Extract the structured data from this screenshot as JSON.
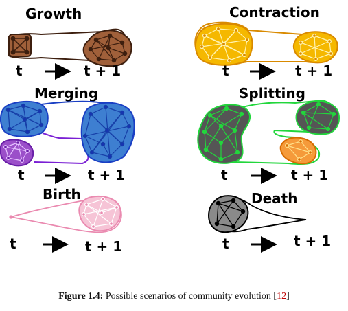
{
  "scenarios": {
    "growth": {
      "title": "Growth",
      "t": "t",
      "t1": "t + 1"
    },
    "contraction": {
      "title": "Contraction",
      "t": "t",
      "t1": "t + 1"
    },
    "merging": {
      "title": "Merging",
      "t": "t",
      "t1": "t + 1"
    },
    "splitting": {
      "title": "Splitting",
      "t": "t",
      "t1": "t + 1"
    },
    "birth": {
      "title": "Birth",
      "t": "t",
      "t1": "t + 1"
    },
    "death": {
      "title": "Death",
      "t": "t",
      "t1": "t + 1"
    }
  },
  "colors": {
    "growth_fill": "#a0603a",
    "growth_stroke": "#3d1f0f",
    "contraction_fill": "#f5b800",
    "contraction_stroke": "#d98a00",
    "merging_fill": "#3e7fd1",
    "merging_stroke": "#1a3fc4",
    "merging_purple": "#9b4fc9",
    "splitting_fill": "#555555",
    "splitting_stroke": "#22d63c",
    "splitting_orange": "#f59a3a",
    "birth_fill": "#f6c4d6",
    "birth_stroke": "#ea8ab0",
    "death_fill": "#8a8a8a",
    "death_stroke": "#000000"
  },
  "caption": {
    "label": "Figure 1.4:",
    "text": " Possible scenarios of community evolution [",
    "ref": "12",
    "end": "]"
  }
}
